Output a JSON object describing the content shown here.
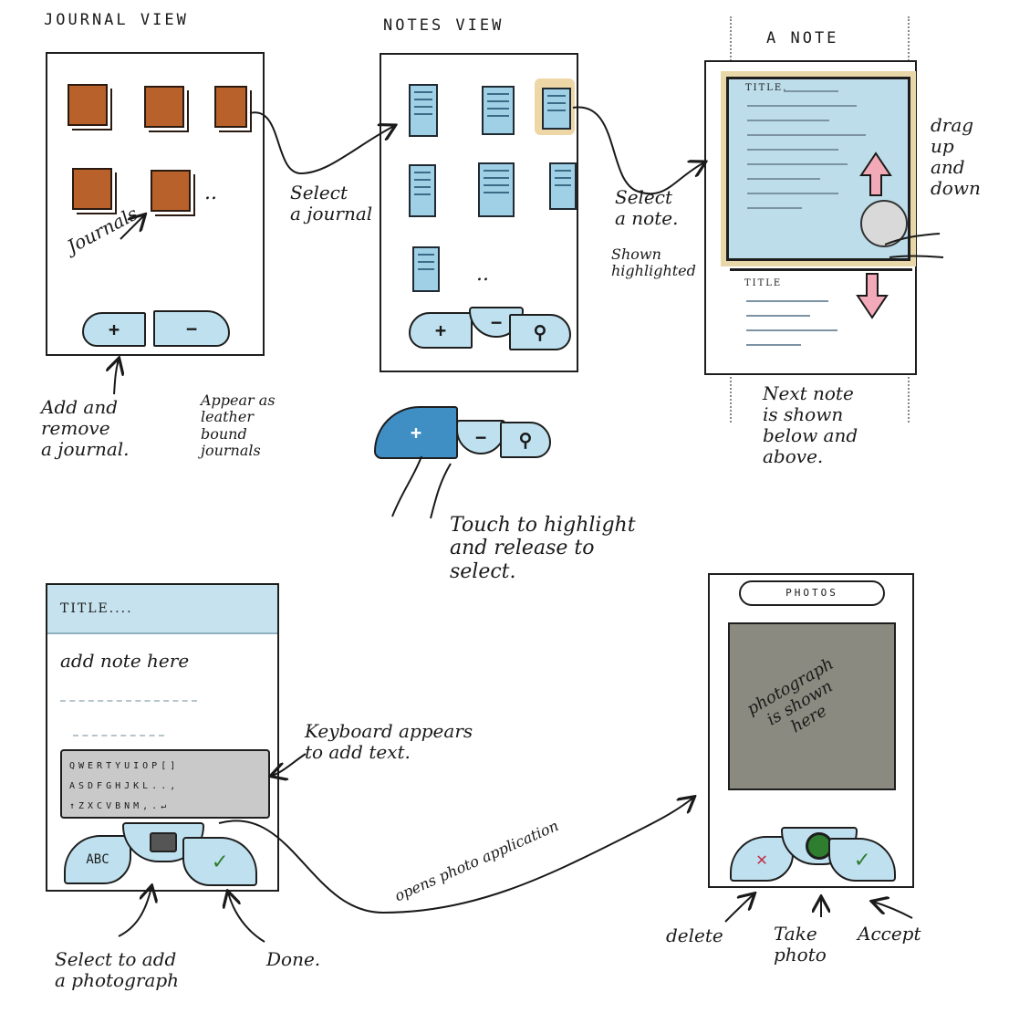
{
  "titles": {
    "journal_view": "JOURNAL VIEW",
    "notes_view": "NOTES VIEW",
    "a_note": "A NOTE"
  },
  "labels": {
    "journals": "Journals",
    "ellipsis": "..",
    "add_remove": "Add and\nremove\na journal.",
    "leather": "Appear as\nleather\nbound\njournals",
    "select_journal": "Select\na journal",
    "select_note": "Select\na note.",
    "shown_highlighted": "Shown\nhighlighted",
    "drag": "drag\nup\nand\ndown",
    "next_note": "Next note\nis shown\nbelow and\nabove.",
    "touch": "Touch to highlight\nand release to\nselect.",
    "keyboard": "Keyboard appears\nto add text.",
    "opens_photo": "opens photo application",
    "select_photo": "Select to add\na photograph",
    "done": "Done.",
    "delete": "delete",
    "take_photo": "Take\nphoto",
    "accept": "Accept"
  },
  "note_screen": {
    "title_top": "TITLE.",
    "title_bottom": "TITLE"
  },
  "editor": {
    "title": "TITLE....",
    "body": "add note here",
    "abc": "ABC",
    "keyboard_rows": [
      "QWERTYUIOP[]",
      "ASDFGHJKL..,",
      "↑ZXCVBNM,.↵"
    ]
  },
  "photos": {
    "header": "PHOTOS",
    "photo_text": "photograph\nis shown\nhere"
  },
  "icons": {
    "plus": "+",
    "minus": "−",
    "search": "search-icon",
    "check": "✓",
    "delete": "✕"
  },
  "colors": {
    "leather": "#b8612a",
    "note_blue": "#9fd0e6",
    "highlight": "#e8c98a",
    "arrow_pink": "#f2a9b8",
    "photo_gray": "#8a8a80"
  }
}
